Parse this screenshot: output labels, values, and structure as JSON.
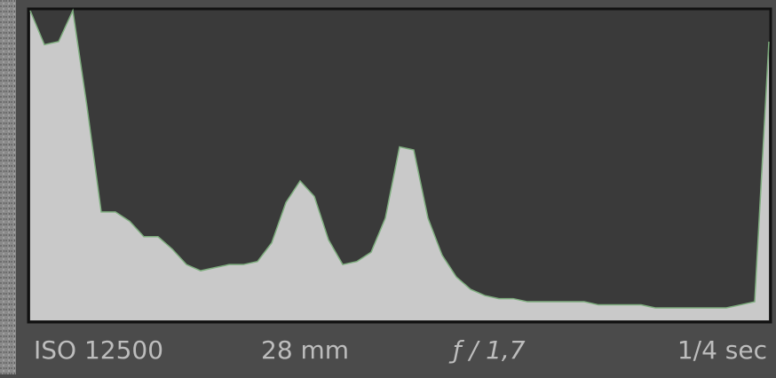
{
  "histogram": {
    "values": [
      100,
      89,
      90,
      100,
      69,
      35,
      35,
      32,
      27,
      27,
      23,
      18,
      16,
      17,
      18,
      18,
      19,
      25,
      38,
      45,
      40,
      26,
      18,
      19,
      22,
      33,
      56,
      55,
      33,
      21,
      14,
      10,
      8,
      7,
      7,
      6,
      6,
      6,
      6,
      6,
      5,
      5,
      5,
      5,
      4,
      4,
      4,
      4,
      4,
      4,
      5,
      6,
      90
    ]
  },
  "info": {
    "iso": "ISO 12500",
    "focal_length": "28 mm",
    "aperture": "ƒ / 1,7",
    "shutter": "1/4 sec"
  }
}
